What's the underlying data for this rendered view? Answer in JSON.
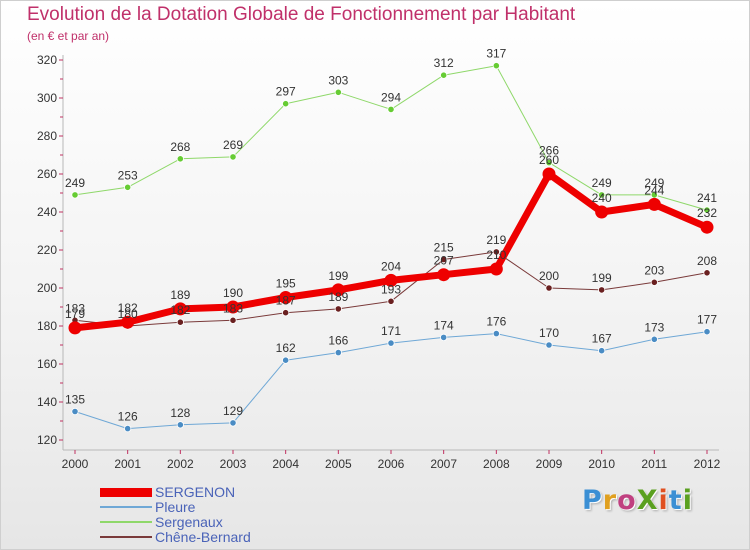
{
  "title": "Evolution de la Dotation Globale de Fonctionnement par Habitant",
  "subtitle": "(en € et par an)",
  "logo": {
    "text": "ProXiti",
    "letter_colors": [
      "#3b8fd4",
      "#e0a020",
      "#c04080",
      "#5aa020",
      "#e05020",
      "#3b8fd4",
      "#5aa020"
    ]
  },
  "chart_data": {
    "type": "line",
    "title": "Evolution de la Dotation Globale de Fonctionnement par Habitant",
    "subtitle": "(en € et par an)",
    "xlabel": "",
    "ylabel": "",
    "categories": [
      "2000",
      "2001",
      "2002",
      "2003",
      "2004",
      "2005",
      "2006",
      "2007",
      "2008",
      "2009",
      "2010",
      "2011",
      "2012"
    ],
    "ylim": [
      120,
      320
    ],
    "yticks": [
      120,
      140,
      160,
      180,
      200,
      220,
      240,
      260,
      280,
      300,
      320
    ],
    "grid": false,
    "legend_position": "bottom-left",
    "series": [
      {
        "name": "Sergenaux",
        "color": "#8fd86a",
        "marker": "#66cc33",
        "width": 1,
        "radius": 3.2,
        "values": [
          249,
          253,
          268,
          269,
          297,
          303,
          294,
          312,
          317,
          266,
          249,
          249,
          241
        ],
        "labels": [
          "249",
          "253",
          "268",
          "269",
          "297",
          "303",
          "294",
          "312",
          "317",
          "266",
          "249",
          "249",
          "241"
        ]
      },
      {
        "name": "Pleure",
        "color": "#6fa8d6",
        "marker": "#4a8cc4",
        "width": 1,
        "radius": 3.2,
        "values": [
          135,
          126,
          128,
          129,
          162,
          166,
          171,
          174,
          176,
          170,
          167,
          173,
          177
        ],
        "labels": [
          "135",
          "126",
          "128",
          "129",
          "162",
          "166",
          "171",
          "174",
          "176",
          "170",
          "167",
          "173",
          "177"
        ]
      },
      {
        "name": "Chêne-Bernard",
        "color": "#7a3a3a",
        "marker": "#6a2020",
        "width": 1,
        "radius": 3.2,
        "values": [
          183,
          180,
          182,
          183,
          187,
          189,
          193,
          215,
          219,
          200,
          199,
          203,
          208
        ],
        "labels": [
          "183",
          "180",
          "182",
          "183",
          "187",
          "189",
          "193",
          "215",
          "219",
          "200",
          "199",
          "203",
          "208"
        ]
      },
      {
        "name": "SERGENON",
        "color": "#ee0000",
        "marker": "#ee0000",
        "width": 7,
        "radius": 6.5,
        "values": [
          179,
          182,
          189,
          190,
          195,
          199,
          204,
          207,
          210,
          260,
          240,
          244,
          232
        ],
        "labels": [
          "179",
          "182",
          "189",
          "190",
          "195",
          "199",
          "204",
          "207",
          "210",
          "260",
          "240",
          "244",
          "232"
        ]
      }
    ]
  },
  "legend": [
    {
      "name": "SERGENON",
      "color": "#ee0000",
      "thickness": 9
    },
    {
      "name": "Pleure",
      "color": "#6fa8d6",
      "thickness": 2
    },
    {
      "name": "Sergenaux",
      "color": "#8fd86a",
      "thickness": 2
    },
    {
      "name": "Chêne-Bernard",
      "color": "#7a3a3a",
      "thickness": 2
    }
  ]
}
